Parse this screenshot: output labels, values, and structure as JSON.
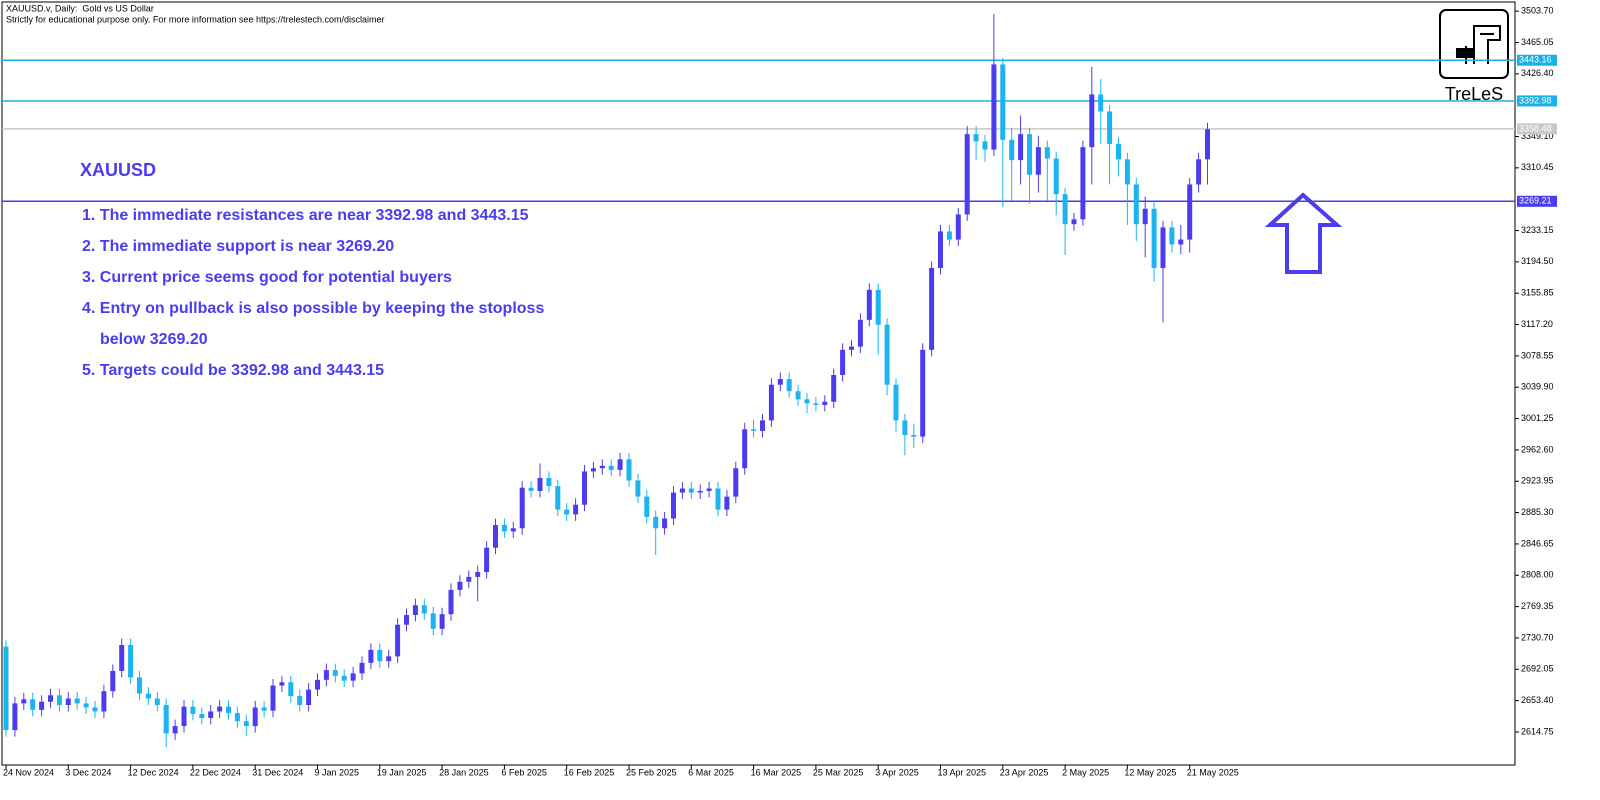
{
  "chart_data": {
    "type": "candlestick",
    "title": "XAUUSD.v, Daily:  Gold vs US Dollar",
    "subtitle": "Strictly for educational purpose only. For more information see https://trelestech.com/disclaimer",
    "logo": "TreLeS",
    "annotation_title": "XAUUSD",
    "annotations": [
      "1. The immediate resistances are near 3392.98 and 3443.15",
      "2. The immediate support is near 3269.20",
      "3. Current price seems good for potential buyers",
      "4. Entry on pullback is also possible by keeping the stoploss",
      "below 3269.20",
      "5. Targets could be 3392.98 and 3443.15"
    ],
    "up_color": "#4b3cf0",
    "down_color": "#1ab4f0",
    "categories": [
      "24 Nov 2024",
      null,
      null,
      null,
      null,
      null,
      null,
      "3 Dec 2024",
      null,
      null,
      null,
      null,
      null,
      null,
      "12 Dec 2024",
      null,
      null,
      null,
      null,
      null,
      null,
      "22 Dec 2024",
      null,
      null,
      null,
      null,
      null,
      null,
      "31 Dec 2024",
      null,
      null,
      null,
      null,
      null,
      null,
      "9 Jan 2025",
      null,
      null,
      null,
      null,
      null,
      null,
      "19 Jan 2025",
      null,
      null,
      null,
      null,
      null,
      null,
      "28 Jan 2025",
      null,
      null,
      null,
      null,
      null,
      null,
      "6 Feb 2025",
      null,
      null,
      null,
      null,
      null,
      null,
      "16 Feb 2025",
      null,
      null,
      null,
      null,
      null,
      null,
      "25 Feb 2025",
      null,
      null,
      null,
      null,
      null,
      null,
      "6 Mar 2025",
      null,
      null,
      null,
      null,
      null,
      null,
      "16 Mar 2025",
      null,
      null,
      null,
      null,
      null,
      null,
      "25 Mar 2025",
      null,
      null,
      null,
      null,
      null,
      null,
      "3 Apr 2025",
      null,
      null,
      null,
      null,
      null,
      null,
      "13 Apr 2025",
      null,
      null,
      null,
      null,
      null,
      null,
      "23 Apr 2025",
      null,
      null,
      null,
      null,
      null,
      null,
      "2 May 2025",
      null,
      null,
      null,
      null,
      null,
      null,
      "12 May 2025",
      null,
      null,
      null,
      null,
      null,
      null,
      "21 May 2025",
      null,
      null
    ],
    "open": [
      2720,
      2617,
      2650,
      2655,
      2642,
      2652,
      2660,
      2648,
      2656,
      2650,
      2645,
      2640,
      2665,
      2690,
      2722,
      2682,
      2662,
      2656,
      2648,
      2613,
      2622,
      2646,
      2637,
      2632,
      2640,
      2646,
      2638,
      2628,
      2622,
      2645,
      2641,
      2672,
      2676,
      2659,
      2648,
      2667,
      2679,
      2691,
      2684,
      2678,
      2687,
      2700,
      2716,
      2702,
      2708,
      2747,
      2759,
      2771,
      2761,
      2742,
      2760,
      2790,
      2800,
      2806,
      2812,
      2842,
      2870,
      2862,
      2866,
      2916,
      2912,
      2928,
      2918,
      2889,
      2883,
      2895,
      2936,
      2940,
      2943,
      2938,
      2951,
      2925,
      2905,
      2880,
      2866,
      2878,
      2910,
      2915,
      2910,
      2912,
      2915,
      2889,
      2905,
      2940,
      2988,
      2986,
      2999,
      3043,
      3050,
      3035,
      3025,
      3020,
      3018,
      3022,
      3055,
      3086,
      3090,
      3123,
      3160,
      3117,
      3043,
      2999,
      2981,
      2979,
      3086,
      3187,
      3232,
      3222,
      3253,
      3352,
      3343,
      3333,
      3438,
      3345,
      3320,
      3352,
      3302,
      3336,
      3322,
      3278,
      3241,
      3247,
      3336,
      3401,
      3380,
      3340,
      3321,
      3290,
      3241,
      3260,
      3187,
      3237,
      3216,
      3222,
      3290,
      3321
    ],
    "high": [
      2728,
      2658,
      2663,
      2663,
      2660,
      2668,
      2668,
      2664,
      2664,
      2658,
      2653,
      2673,
      2698,
      2730,
      2730,
      2690,
      2670,
      2664,
      2656,
      2630,
      2654,
      2654,
      2645,
      2648,
      2654,
      2654,
      2646,
      2636,
      2653,
      2653,
      2680,
      2684,
      2684,
      2667,
      2675,
      2687,
      2699,
      2699,
      2692,
      2695,
      2708,
      2724,
      2724,
      2716,
      2755,
      2767,
      2779,
      2779,
      2769,
      2768,
      2798,
      2808,
      2814,
      2820,
      2850,
      2878,
      2878,
      2874,
      2924,
      2924,
      2946,
      2936,
      2926,
      2897,
      2903,
      2944,
      2948,
      2951,
      2951,
      2959,
      2959,
      2933,
      2913,
      2888,
      2886,
      2918,
      2923,
      2923,
      2920,
      2923,
      2923,
      2913,
      2948,
      2996,
      3000,
      3007,
      3051,
      3058,
      3058,
      3043,
      3033,
      3028,
      3030,
      3063,
      3094,
      3098,
      3131,
      3168,
      3168,
      3125,
      3051,
      3007,
      2995,
      3094,
      3195,
      3240,
      3240,
      3261,
      3362,
      3362,
      3351,
      3500,
      3446,
      3360,
      3375,
      3360,
      3350,
      3344,
      3330,
      3286,
      3255,
      3344,
      3435,
      3420,
      3388,
      3348,
      3329,
      3298,
      3275,
      3268,
      3245,
      3245,
      3240,
      3298,
      3329,
      3366
    ],
    "low": [
      2609,
      2609,
      2642,
      2634,
      2634,
      2644,
      2640,
      2640,
      2642,
      2637,
      2632,
      2632,
      2657,
      2682,
      2674,
      2654,
      2648,
      2640,
      2596,
      2605,
      2614,
      2629,
      2624,
      2624,
      2632,
      2630,
      2620,
      2610,
      2614,
      2633,
      2633,
      2664,
      2651,
      2640,
      2640,
      2659,
      2671,
      2676,
      2670,
      2670,
      2679,
      2692,
      2694,
      2694,
      2700,
      2739,
      2751,
      2753,
      2734,
      2734,
      2752,
      2782,
      2792,
      2776,
      2804,
      2834,
      2854,
      2854,
      2858,
      2904,
      2904,
      2910,
      2881,
      2875,
      2875,
      2887,
      2928,
      2932,
      2930,
      2930,
      2917,
      2897,
      2872,
      2833,
      2858,
      2870,
      2902,
      2902,
      2902,
      2904,
      2881,
      2881,
      2897,
      2932,
      2978,
      2978,
      2991,
      3035,
      3027,
      3017,
      3008,
      3010,
      3010,
      3014,
      3047,
      3078,
      3082,
      3115,
      3080,
      3030,
      2985,
      2956,
      2965,
      2971,
      3078,
      3179,
      3214,
      3214,
      3245,
      3320,
      3318,
      3325,
      3262,
      3270,
      3290,
      3266,
      3280,
      3270,
      3252,
      3203,
      3233,
      3239,
      3290,
      3340,
      3290,
      3300,
      3240,
      3220,
      3200,
      3170,
      3120,
      3206,
      3204,
      3206,
      3280,
      3290
    ],
    "close": [
      2617,
      2650,
      2655,
      2642,
      2652,
      2660,
      2648,
      2656,
      2650,
      2645,
      2640,
      2665,
      2690,
      2722,
      2682,
      2662,
      2656,
      2648,
      2613,
      2622,
      2646,
      2637,
      2632,
      2640,
      2646,
      2638,
      2628,
      2622,
      2645,
      2641,
      2672,
      2676,
      2659,
      2648,
      2667,
      2679,
      2691,
      2684,
      2678,
      2687,
      2700,
      2716,
      2702,
      2708,
      2747,
      2759,
      2771,
      2761,
      2742,
      2760,
      2790,
      2800,
      2806,
      2812,
      2842,
      2870,
      2862,
      2866,
      2916,
      2912,
      2928,
      2918,
      2889,
      2883,
      2895,
      2936,
      2940,
      2943,
      2938,
      2951,
      2925,
      2905,
      2880,
      2866,
      2878,
      2910,
      2915,
      2910,
      2912,
      2915,
      2889,
      2905,
      2940,
      2988,
      2986,
      2999,
      3043,
      3050,
      3035,
      3025,
      3020,
      3018,
      3022,
      3055,
      3086,
      3090,
      3123,
      3160,
      3117,
      3043,
      2999,
      2981,
      2979,
      3086,
      3187,
      3232,
      3222,
      3253,
      3352,
      3343,
      3333,
      3438,
      3345,
      3320,
      3352,
      3302,
      3336,
      3322,
      3278,
      3241,
      3247,
      3336,
      3401,
      3380,
      3340,
      3321,
      3290,
      3241,
      3260,
      3187,
      3237,
      3216,
      3222,
      3290,
      3321,
      3358
    ],
    "ylim": [
      2574,
      3515
    ],
    "yticks": [
      {
        "value": 3503.7,
        "label": "3503.70"
      },
      {
        "value": 3465.05,
        "label": "3465.05"
      },
      {
        "value": 3426.4,
        "label": "3426.40"
      },
      {
        "value": 3349.1,
        "label": "3349.10"
      },
      {
        "value": 3310.45,
        "label": "3310.45"
      },
      {
        "value": 3233.15,
        "label": "3233.15"
      },
      {
        "value": 3194.5,
        "label": "3194.50"
      },
      {
        "value": 3155.85,
        "label": "3155.85"
      },
      {
        "value": 3117.2,
        "label": "3117.20"
      },
      {
        "value": 3078.55,
        "label": "3078.55"
      },
      {
        "value": 3039.9,
        "label": "3039.90"
      },
      {
        "value": 3001.25,
        "label": "3001.25"
      },
      {
        "value": 2962.6,
        "label": "2962.60"
      },
      {
        "value": 2923.95,
        "label": "2923.95"
      },
      {
        "value": 2885.3,
        "label": "2885.30"
      },
      {
        "value": 2846.65,
        "label": "2846.65"
      },
      {
        "value": 2808.0,
        "label": "2808.00"
      },
      {
        "value": 2769.35,
        "label": "2769.35"
      },
      {
        "value": 2730.7,
        "label": "2730.70"
      },
      {
        "value": 2692.05,
        "label": "2692.05"
      },
      {
        "value": 2653.4,
        "label": "2653.40"
      },
      {
        "value": 2614.75,
        "label": "2614.75"
      }
    ],
    "hlines": [
      {
        "value": 3443.16,
        "color": "#1ab0e8"
      },
      {
        "value": 3392.98,
        "color": "#1ab0e8"
      },
      {
        "value": 3358.48,
        "color": "#c8c8c8"
      },
      {
        "value": 3269.21,
        "color": "#4a3cf0"
      }
    ]
  }
}
